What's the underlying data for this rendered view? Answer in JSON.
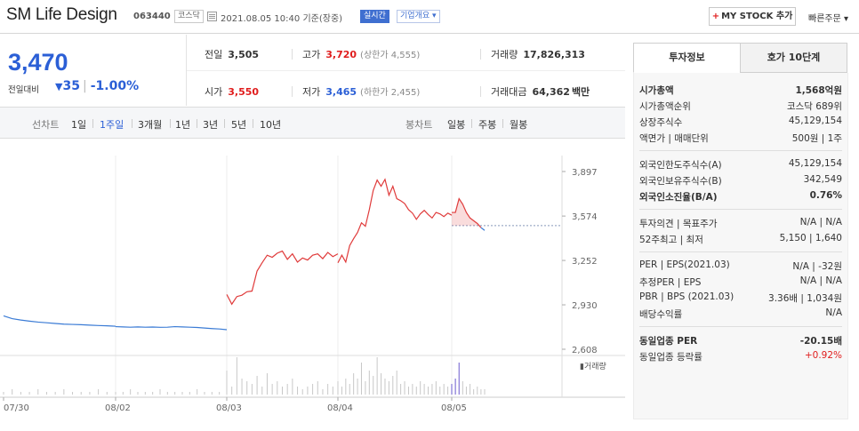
{
  "header": {
    "company": "SM Life Design",
    "code": "063440",
    "market": "코스닥",
    "datetime": "2021.08.05 10:40",
    "basis": "기준(장중)",
    "realtime": "실시간",
    "corp_info": "기업개요",
    "my_stock": "MY STOCK 추가",
    "quick_order": "빠른주문"
  },
  "price": {
    "current": "3,470",
    "change_label": "전일대비",
    "change": "35",
    "change_pct": "-1.00%",
    "color_down": "#2b5fd6",
    "color_up": "#e01d1d"
  },
  "quote": {
    "prev_label": "전일",
    "prev": "3,505",
    "high_label": "고가",
    "high": "3,720",
    "upper_limit": "(상한가 4,555)",
    "volume_label": "거래량",
    "volume": "17,826,313",
    "open_label": "시가",
    "open": "3,550",
    "low_label": "저가",
    "low": "3,465",
    "lower_limit": "(하한가 2,455)",
    "amount_label": "거래대금",
    "amount": "64,362",
    "amount_unit": "백만"
  },
  "periods": {
    "line_label": "선차트",
    "items": [
      "1일",
      "1주일",
      "3개월",
      "1년",
      "3년",
      "5년",
      "10년"
    ],
    "active": "1주일",
    "candle_label": "봉차트",
    "candle_items": [
      "일봉",
      "주봉",
      "월봉"
    ]
  },
  "chart_data": {
    "type": "line",
    "x_ticks": [
      "07/30",
      "08/02",
      "08/03",
      "08/04",
      "08/05"
    ],
    "y_ticks": [
      "3,897",
      "3,574",
      "3,252",
      "2,930",
      "2,608"
    ],
    "y_range": [
      2608,
      3897
    ],
    "prev_close": 3505,
    "volume_label": "거래량",
    "days": [
      {
        "date": "07/30",
        "values": [
          2850,
          2830,
          2820,
          2812,
          2805,
          2800,
          2795,
          2790,
          2788,
          2786,
          2783,
          2780,
          2778,
          2775
        ],
        "color": "#3a7bd5"
      },
      {
        "date": "08/02",
        "values": [
          2772,
          2770,
          2768,
          2770,
          2768,
          2769,
          2767,
          2768,
          2772,
          2770,
          2768,
          2766,
          2762,
          2758,
          2755,
          2750
        ],
        "color": "#3a7bd5"
      },
      {
        "date": "08/03",
        "values": [
          3005,
          2935,
          2990,
          3000,
          3025,
          3030,
          3175,
          3235,
          3290,
          3275,
          3305,
          3320,
          3260,
          3300,
          3240,
          3270,
          3255,
          3290,
          3300,
          3265,
          3310,
          3280,
          3300
        ],
        "color": "#e03b3b"
      },
      {
        "date": "08/04",
        "values": [
          3235,
          3290,
          3240,
          3360,
          3410,
          3455,
          3525,
          3500,
          3620,
          3760,
          3835,
          3790,
          3840,
          3725,
          3790,
          3700,
          3685,
          3665,
          3620,
          3595,
          3550,
          3590,
          3615,
          3585,
          3560,
          3600,
          3590,
          3570,
          3595,
          3580
        ],
        "color": "#e03b3b"
      },
      {
        "date": "08/05",
        "values": [
          3600,
          3600,
          3700,
          3660,
          3600,
          3560,
          3540,
          3520,
          3490,
          3470
        ],
        "color": "#e03b3b"
      }
    ],
    "volume": [
      [
        1,
        2,
        1,
        1,
        2,
        1,
        1,
        2,
        1,
        1,
        1,
        2,
        1,
        1
      ],
      [
        1,
        1,
        2,
        1,
        1,
        1,
        2,
        1,
        1,
        1,
        1,
        2,
        1,
        1,
        1,
        2
      ],
      [
        9,
        3,
        14,
        6,
        5,
        4,
        7,
        3,
        8,
        4,
        5,
        3,
        4,
        6,
        3,
        2,
        3,
        4,
        5,
        2,
        4,
        3,
        4
      ],
      [
        5,
        3,
        6,
        4,
        8,
        6,
        12,
        5,
        9,
        7,
        14,
        8,
        6,
        5,
        7,
        9,
        4,
        5,
        3,
        4,
        3,
        5,
        4,
        3,
        4,
        5,
        3,
        4,
        3,
        4
      ],
      [
        4,
        6,
        12,
        5,
        3,
        4,
        2,
        3,
        2,
        2
      ]
    ]
  },
  "side": {
    "tab_invest": "투자정보",
    "tab_quote": "호가 10단계",
    "rows1": [
      {
        "k": "시가총액",
        "v": "1,568억원",
        "bold": true
      },
      {
        "k": "시가총액순위",
        "v": "코스닥 689위"
      },
      {
        "k": "상장주식수",
        "v": "45,129,154"
      },
      {
        "k": "액면가 | 매매단위",
        "v": "500원 | 1주"
      }
    ],
    "rows2": [
      {
        "k": "외국인한도주식수(A)",
        "v": "45,129,154"
      },
      {
        "k": "외국인보유주식수(B)",
        "v": "342,549"
      },
      {
        "k": "외국인소진율(B/A)",
        "v": "0.76%",
        "bold": true
      }
    ],
    "rows3": [
      {
        "k": "투자의견 | 목표주가",
        "v": "N/A | N/A"
      },
      {
        "k": "52주최고 | 최저",
        "v": "5,150 | 1,640"
      }
    ],
    "rows4": [
      {
        "k": "PER | EPS(2021.03)",
        "v": "N/A | -32원"
      },
      {
        "k": "추정PER | EPS",
        "v": "N/A | N/A"
      },
      {
        "k": "PBR | BPS (2021.03)",
        "v": "3.36배 | 1,034원"
      },
      {
        "k": "배당수익률",
        "v": "N/A"
      }
    ],
    "rows5": [
      {
        "k": "동일업종 PER",
        "v": "-20.15배",
        "bold": true
      },
      {
        "k": "동일업종 등락률",
        "v": "+0.92%",
        "up": true
      }
    ]
  }
}
